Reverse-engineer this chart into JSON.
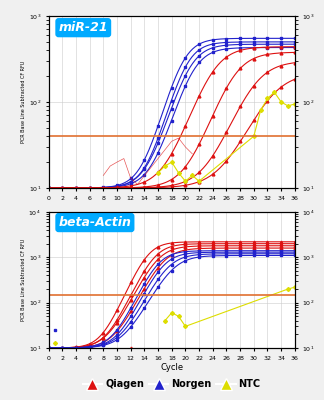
{
  "title1": "miR-21",
  "title2": "beta-Actin",
  "xlabel": "Cycle",
  "ylabel": "PCR Base Line Subtracted CF RFU",
  "background_color": "#f0f0f0",
  "plot_bg": "#ffffff",
  "title_box_color": "#00aaff",
  "threshold_color": "#e07030",
  "threshold1": 40,
  "threshold2": 150,
  "ylim1": [
    10,
    1000
  ],
  "ylim2": [
    10,
    10000
  ],
  "xlim": [
    0,
    36
  ],
  "xticks": [
    0,
    2,
    4,
    6,
    8,
    10,
    12,
    14,
    16,
    18,
    20,
    22,
    24,
    26,
    28,
    30,
    32,
    34,
    36
  ],
  "red_color": "#dd1111",
  "blue_color": "#2222cc",
  "yellow_color": "#dddd00",
  "legend_entries": [
    "Qiagen",
    "Norgen",
    "NTC"
  ],
  "legend_colors": [
    "#dd1111",
    "#2222cc",
    "#dddd00"
  ]
}
